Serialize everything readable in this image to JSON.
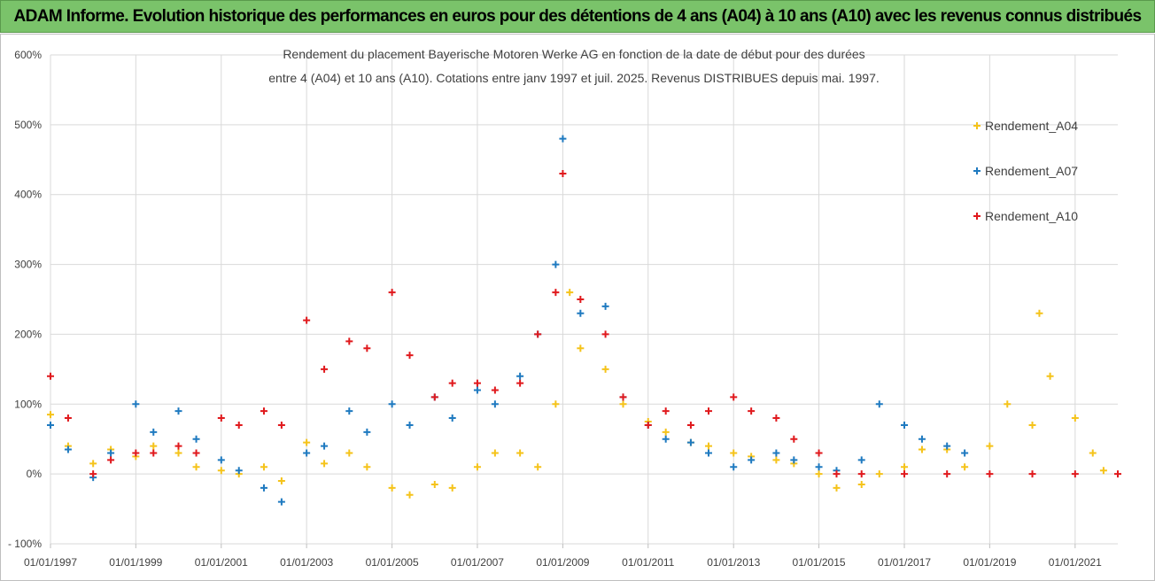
{
  "banner": {
    "text": "ADAM Informe. Evolution historique des performances en euros pour des détentions de 4 ans (A04) à 10 ans (A10) avec les revenus connus distribués"
  },
  "chart_data": {
    "type": "scatter",
    "title_lines": [
      "Rendement du placement Bayerische Motoren Werke AG en fonction de la date de début pour des durées",
      "entre 4 (A04) et 10 ans (A10).  Cotations entre janv 1997 et juil. 2025. Revenus DISTRIBUES depuis mai. 1997."
    ],
    "xlabel": "",
    "ylabel": "",
    "x_range": [
      "1997-01-01",
      "2022-01-01"
    ],
    "ylim": [
      -100,
      600
    ],
    "y_ticks": [
      "600%",
      "500%",
      "400%",
      "300%",
      "200%",
      "100%",
      "0%",
      "- 100%"
    ],
    "x_ticks": [
      "01/01/1997",
      "01/01/1999",
      "01/01/2001",
      "01/01/2003",
      "01/01/2005",
      "01/01/2007",
      "01/01/2009",
      "01/01/2011",
      "01/01/2013",
      "01/01/2015",
      "01/01/2017",
      "01/01/2019",
      "01/01/2021"
    ],
    "grid": true,
    "legend_position": "right",
    "series": [
      {
        "name": "Rendement_A04",
        "color": "#f5c31a",
        "x": [
          "1997-01-01",
          "1997-06-01",
          "1998-01-01",
          "1998-06-01",
          "1999-01-01",
          "1999-06-01",
          "2000-01-01",
          "2000-06-01",
          "2001-01-01",
          "2001-06-01",
          "2002-01-01",
          "2002-06-01",
          "2003-01-01",
          "2003-06-01",
          "2004-01-01",
          "2004-06-01",
          "2005-01-01",
          "2005-06-01",
          "2006-01-01",
          "2006-06-01",
          "2007-01-01",
          "2007-06-01",
          "2008-01-01",
          "2008-06-01",
          "2008-11-01",
          "2009-03-01",
          "2009-06-01",
          "2010-01-01",
          "2010-06-01",
          "2011-01-01",
          "2011-06-01",
          "2012-01-01",
          "2012-06-01",
          "2013-01-01",
          "2013-06-01",
          "2014-01-01",
          "2014-06-01",
          "2015-01-01",
          "2015-06-01",
          "2016-01-01",
          "2016-06-01",
          "2017-01-01",
          "2017-06-01",
          "2018-01-01",
          "2018-06-01",
          "2019-01-01",
          "2019-06-01",
          "2020-01-01",
          "2020-03-01",
          "2020-06-01",
          "2021-01-01",
          "2021-06-01",
          "2021-09-01"
        ],
        "y": [
          85,
          40,
          15,
          35,
          25,
          40,
          30,
          10,
          5,
          0,
          10,
          -10,
          45,
          15,
          30,
          10,
          -20,
          -30,
          -15,
          -20,
          10,
          30,
          30,
          10,
          100,
          260,
          180,
          150,
          100,
          75,
          60,
          45,
          40,
          30,
          25,
          20,
          15,
          0,
          -20,
          -15,
          0,
          10,
          35,
          35,
          10,
          40,
          100,
          70,
          230,
          140,
          80,
          30,
          5
        ]
      },
      {
        "name": "Rendement_A07",
        "color": "#1f7ac0",
        "x": [
          "1997-01-01",
          "1997-06-01",
          "1998-01-01",
          "1998-06-01",
          "1999-01-01",
          "1999-06-01",
          "2000-01-01",
          "2000-06-01",
          "2001-01-01",
          "2001-06-01",
          "2002-01-01",
          "2002-06-01",
          "2003-01-01",
          "2003-06-01",
          "2004-01-01",
          "2004-06-01",
          "2005-01-01",
          "2005-06-01",
          "2006-01-01",
          "2006-06-01",
          "2007-01-01",
          "2007-06-01",
          "2008-01-01",
          "2008-06-01",
          "2008-11-01",
          "2009-01-01",
          "2009-06-01",
          "2010-01-01",
          "2010-06-01",
          "2011-01-01",
          "2011-06-01",
          "2012-01-01",
          "2012-06-01",
          "2013-01-01",
          "2013-06-01",
          "2014-01-01",
          "2014-06-01",
          "2015-01-01",
          "2015-06-01",
          "2016-01-01",
          "2016-06-01",
          "2017-01-01",
          "2017-06-01",
          "2018-01-01",
          "2018-06-01"
        ],
        "y": [
          70,
          35,
          -5,
          30,
          100,
          60,
          90,
          50,
          20,
          5,
          -20,
          -40,
          30,
          40,
          90,
          60,
          100,
          70,
          110,
          80,
          120,
          100,
          140,
          200,
          300,
          480,
          230,
          240,
          110,
          70,
          50,
          45,
          30,
          10,
          20,
          30,
          20,
          10,
          5,
          20,
          100,
          70,
          50,
          40,
          30
        ]
      },
      {
        "name": "Rendement_A10",
        "color": "#e0191d",
        "x": [
          "1997-01-01",
          "1997-06-01",
          "1998-01-01",
          "1998-06-01",
          "1999-01-01",
          "1999-06-01",
          "2000-01-01",
          "2000-06-01",
          "2001-01-01",
          "2001-06-01",
          "2002-01-01",
          "2002-06-01",
          "2003-01-01",
          "2003-06-01",
          "2004-01-01",
          "2004-06-01",
          "2005-01-01",
          "2005-06-01",
          "2006-01-01",
          "2006-06-01",
          "2007-01-01",
          "2007-06-01",
          "2008-01-01",
          "2008-06-01",
          "2008-11-01",
          "2009-01-01",
          "2009-06-01",
          "2010-01-01",
          "2010-06-01",
          "2011-01-01",
          "2011-06-01",
          "2012-01-01",
          "2012-06-01",
          "2013-01-01",
          "2013-06-01",
          "2014-01-01",
          "2014-06-01",
          "2015-01-01",
          "2015-06-01",
          "2016-01-01",
          "2017-01-01",
          "2018-01-01",
          "2019-01-01",
          "2020-01-01",
          "2021-01-01",
          "2022-01-01"
        ],
        "y": [
          140,
          80,
          0,
          20,
          30,
          30,
          40,
          30,
          80,
          70,
          90,
          70,
          220,
          150,
          190,
          180,
          260,
          170,
          110,
          130,
          130,
          120,
          130,
          200,
          260,
          430,
          250,
          200,
          110,
          70,
          90,
          70,
          90,
          110,
          90,
          80,
          50,
          30,
          0,
          0,
          0,
          0,
          0,
          0,
          0,
          0
        ]
      }
    ]
  }
}
